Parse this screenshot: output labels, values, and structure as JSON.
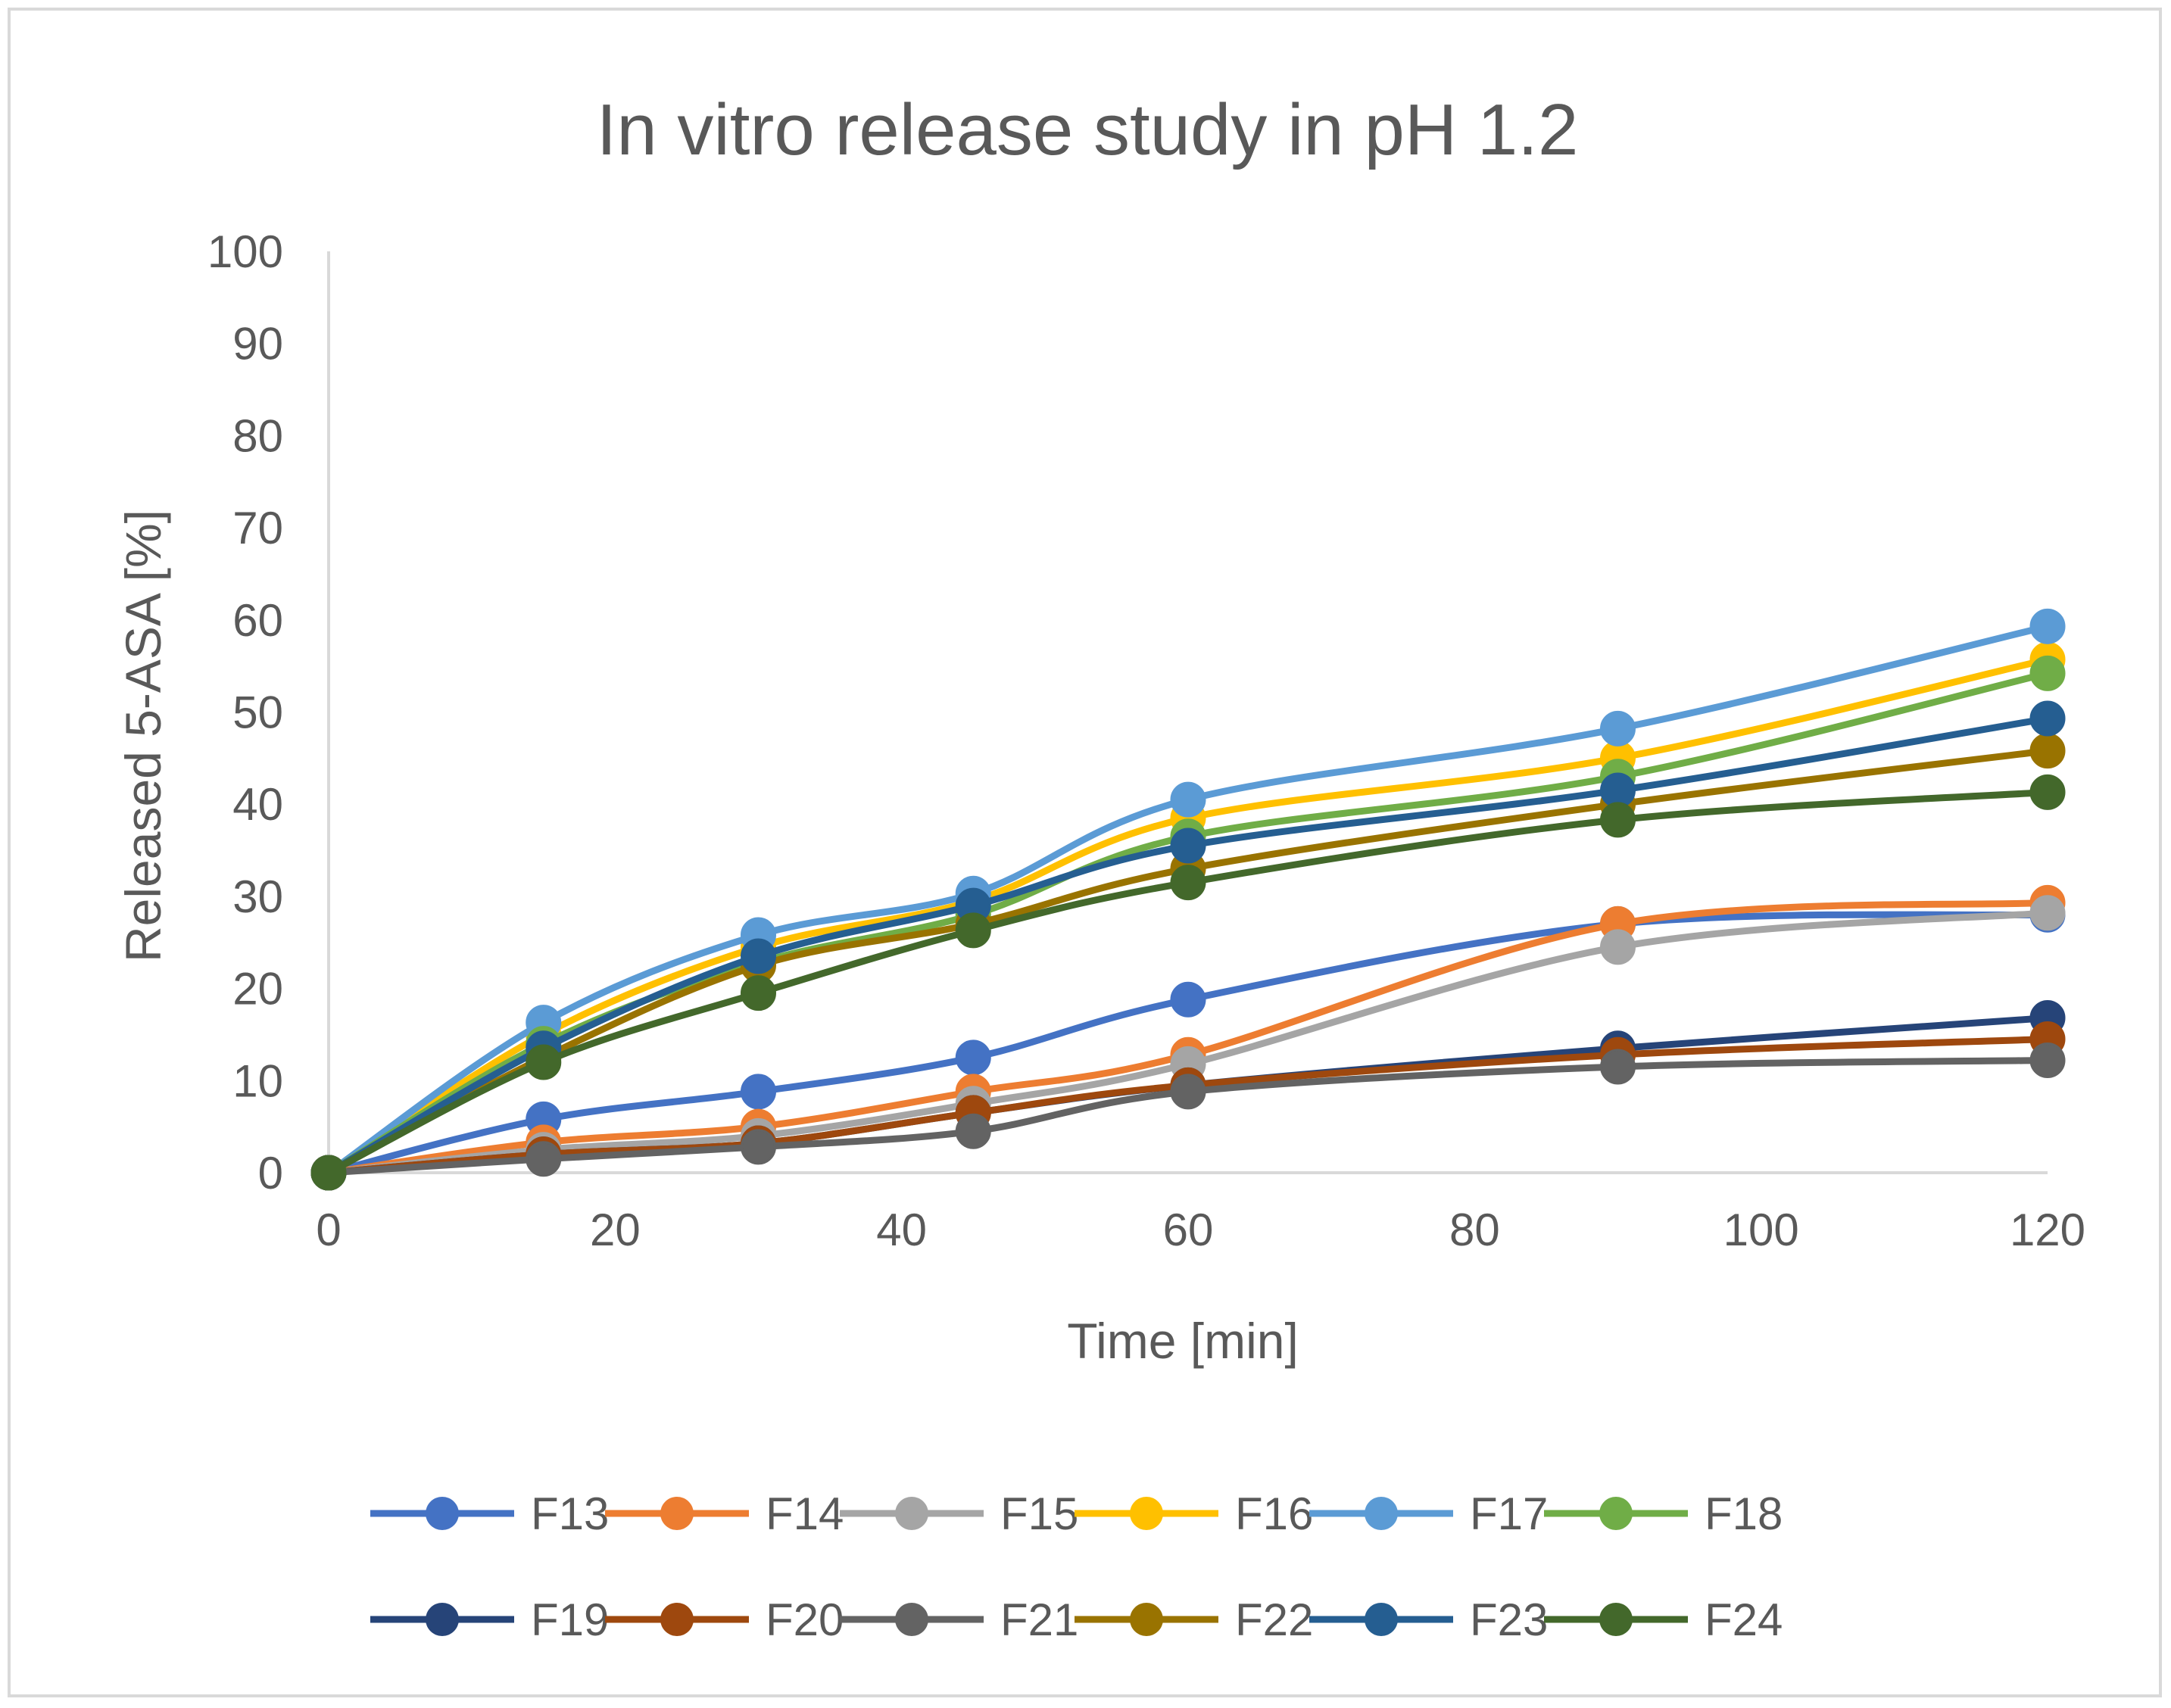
{
  "chart_data": {
    "type": "line",
    "title": "In vitro release study in pH 1.2",
    "xlabel": "Time [min]",
    "ylabel": "Released 5-ASA [%]",
    "xlim": [
      0,
      120
    ],
    "ylim": [
      0,
      100
    ],
    "x_ticks": [
      "0",
      "20",
      "40",
      "60",
      "80",
      "100",
      "120"
    ],
    "y_ticks": [
      "0",
      "10",
      "20",
      "30",
      "40",
      "50",
      "60",
      "70",
      "80",
      "90",
      "100"
    ],
    "grid": false,
    "legend_position": "bottom",
    "x": [
      0,
      15,
      30,
      45,
      60,
      90,
      120
    ],
    "series": [
      {
        "name": "F13",
        "color": "#4472c4",
        "values": [
          0,
          5.8,
          8.8,
          12.5,
          18.8,
          27.0,
          28.0
        ]
      },
      {
        "name": "F14",
        "color": "#ed7d31",
        "values": [
          0,
          3.3,
          5.0,
          8.8,
          12.8,
          27.0,
          29.3
        ]
      },
      {
        "name": "F15",
        "color": "#a5a5a5",
        "values": [
          0,
          2.5,
          4.0,
          7.5,
          11.8,
          24.5,
          28.2
        ]
      },
      {
        "name": "F16",
        "color": "#ffc000",
        "values": [
          0,
          15.0,
          24.5,
          29.5,
          38.5,
          45.0,
          55.7
        ]
      },
      {
        "name": "F17",
        "color": "#5b9bd5",
        "values": [
          0,
          16.3,
          25.8,
          30.3,
          40.5,
          48.2,
          59.3
        ]
      },
      {
        "name": "F18",
        "color": "#70ad47",
        "values": [
          0,
          14.0,
          22.8,
          28.0,
          36.5,
          43.0,
          54.2
        ]
      },
      {
        "name": "F19",
        "color": "#264478",
        "values": [
          0,
          2.0,
          3.2,
          6.5,
          9.5,
          13.5,
          16.8
        ]
      },
      {
        "name": "F20",
        "color": "#9e480e",
        "values": [
          0,
          2.0,
          3.2,
          6.5,
          9.5,
          12.8,
          14.5
        ]
      },
      {
        "name": "F21",
        "color": "#636363",
        "values": [
          0,
          1.5,
          2.8,
          4.5,
          8.8,
          11.5,
          12.2
        ]
      },
      {
        "name": "F22",
        "color": "#997300",
        "values": [
          0,
          12.5,
          22.5,
          27.0,
          33.0,
          40.0,
          45.8
        ]
      },
      {
        "name": "F23",
        "color": "#255e91",
        "values": [
          0,
          13.5,
          23.5,
          29.0,
          35.5,
          41.5,
          49.3
        ]
      },
      {
        "name": "F24",
        "color": "#43682b",
        "values": [
          0,
          12.0,
          19.5,
          26.3,
          31.5,
          38.3,
          41.3
        ]
      }
    ]
  }
}
